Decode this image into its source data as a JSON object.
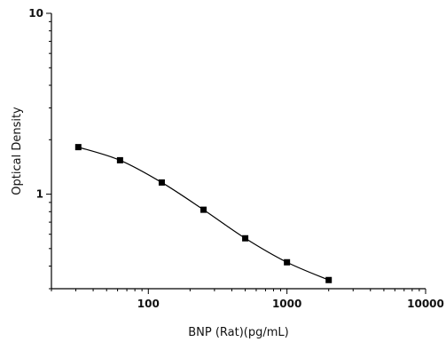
{
  "chart_data": {
    "type": "scatter",
    "title": "",
    "xlabel": "BNP (Rat)(pg/mL)",
    "ylabel": "Optical Density",
    "x_scale": "log",
    "y_scale": "log",
    "xlim": [
      20,
      10000
    ],
    "ylim": [
      0.3,
      10
    ],
    "x_ticks": [
      {
        "value": 100,
        "label": "100"
      },
      {
        "value": 1000,
        "label": "1000"
      },
      {
        "value": 10000,
        "label": "10000"
      }
    ],
    "y_ticks": [
      {
        "value": 1,
        "label": "1"
      },
      {
        "value": 10,
        "label": "10"
      }
    ],
    "grid": false,
    "legend": "none",
    "series": [
      {
        "x": [
          31.25,
          62.5,
          125,
          250,
          500,
          1000,
          2000
        ],
        "y": [
          1.82,
          1.54,
          1.16,
          0.82,
          0.57,
          0.42,
          0.335
        ],
        "marker": "square",
        "fit": "4PL smooth curve"
      }
    ],
    "colors": {
      "points": "#000000",
      "line": "#000000",
      "axis": "#000000"
    }
  }
}
